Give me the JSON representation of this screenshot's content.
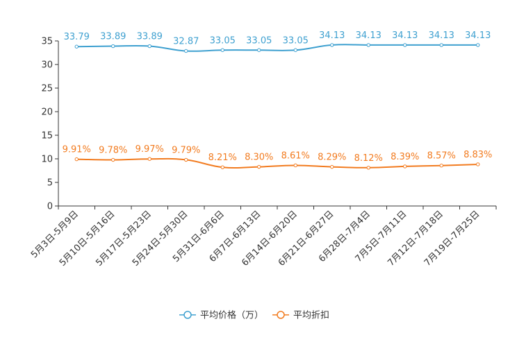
{
  "chart_data": {
    "type": "line",
    "title": "",
    "xlabel": "",
    "ylabel": "",
    "ylim": [
      0,
      35
    ],
    "yticks": [
      0,
      5,
      10,
      15,
      20,
      25,
      30,
      35
    ],
    "grid": false,
    "legend_position": "bottom-center",
    "categories": [
      "5月3日-5月9日",
      "5月10日-5月16日",
      "5月17日-5月23日",
      "5月24日-5月30日",
      "5月31日-6月6日",
      "6月7日-6月13日",
      "6月14日-6月20日",
      "6月21日-6月27日",
      "6月28日-7月4日",
      "7月5日-7月11日",
      "7月12日-7月18日",
      "7月19日-7月25日"
    ],
    "series": [
      {
        "name": "平均价格（万）",
        "color": "#3ea0d0",
        "values": [
          33.79,
          33.89,
          33.89,
          32.87,
          33.05,
          33.05,
          33.05,
          34.13,
          34.13,
          34.13,
          34.13,
          34.13
        ],
        "labels": [
          "33.79",
          "33.89",
          "33.89",
          "32.87",
          "33.05",
          "33.05",
          "33.05",
          "34.13",
          "34.13",
          "34.13",
          "34.13",
          "34.13"
        ]
      },
      {
        "name": "平均折扣",
        "color": "#f27b1f",
        "values": [
          9.91,
          9.78,
          9.97,
          9.79,
          8.21,
          8.3,
          8.61,
          8.29,
          8.12,
          8.39,
          8.57,
          8.83
        ],
        "labels": [
          "9.91%",
          "9.78%",
          "9.97%",
          "9.79%",
          "8.21%",
          "8.30%",
          "8.61%",
          "8.29%",
          "8.12%",
          "8.39%",
          "8.57%",
          "8.83%"
        ]
      }
    ]
  }
}
